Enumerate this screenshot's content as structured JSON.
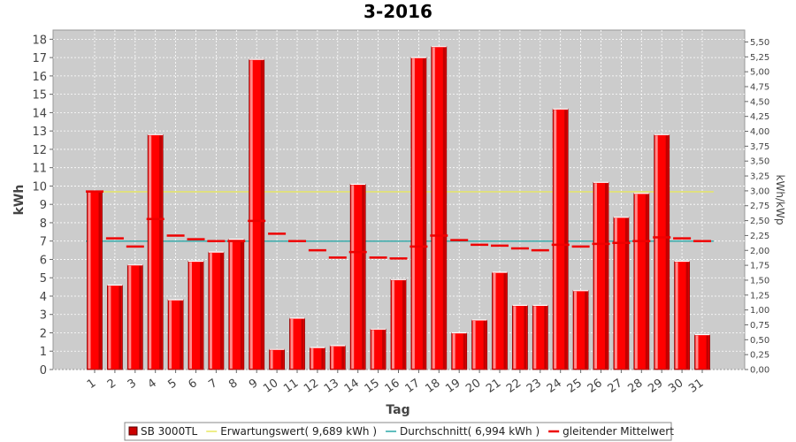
{
  "chart_data": {
    "type": "bar",
    "title": "3-2016",
    "xlabel": "Tag",
    "ylabel": "kWh",
    "y2label": "kWh/kWp",
    "ylim": [
      0,
      18.5
    ],
    "y2lim": [
      0,
      5.7
    ],
    "y2ticks": [
      "0,00",
      "0,25",
      "0,50",
      "0,75",
      "1,00",
      "1,25",
      "1,50",
      "1,75",
      "2,00",
      "2,25",
      "2,50",
      "2,75",
      "3,00",
      "3,25",
      "3,50",
      "3,75",
      "4,00",
      "4,25",
      "4,50",
      "4,75",
      "5,00",
      "5,25",
      "5,50"
    ],
    "grid": true,
    "legend_position": "bottom",
    "categories": [
      "1",
      "2",
      "3",
      "4",
      "5",
      "6",
      "7",
      "8",
      "9",
      "10",
      "11",
      "12",
      "13",
      "14",
      "15",
      "16",
      "17",
      "18",
      "19",
      "20",
      "21",
      "22",
      "23",
      "24",
      "25",
      "26",
      "27",
      "28",
      "29",
      "30",
      "31"
    ],
    "series": [
      {
        "name": "SB 3000TL",
        "type": "bar",
        "color": "#ee0000",
        "values": [
          9.7,
          4.6,
          5.7,
          12.8,
          3.8,
          5.9,
          6.4,
          7.1,
          16.9,
          1.1,
          2.8,
          1.2,
          1.3,
          10.1,
          2.2,
          4.9,
          17.0,
          17.6,
          2.0,
          2.7,
          5.3,
          3.5,
          3.5,
          14.2,
          4.3,
          10.2,
          8.3,
          9.6,
          12.8,
          5.9,
          1.9
        ]
      },
      {
        "name": "Erwartungswert( 9,689 kWh )",
        "type": "line",
        "color": "#e8e860",
        "value": 9.689
      },
      {
        "name": "Durchschnitt( 6,994 kWh )",
        "type": "line",
        "color": "#2aa8a8",
        "value": 6.994
      },
      {
        "name": "gleitender Mittelwert",
        "type": "marker",
        "color": "#ee0000",
        "values": [
          9.7,
          7.15,
          6.7,
          8.2,
          7.3,
          7.1,
          7.0,
          7.0,
          8.1,
          7.4,
          7.0,
          6.5,
          6.1,
          6.4,
          6.1,
          6.05,
          6.7,
          7.3,
          7.05,
          6.8,
          6.75,
          6.6,
          6.5,
          6.8,
          6.7,
          6.85,
          6.9,
          7.0,
          7.2,
          7.15,
          7.0
        ]
      }
    ]
  }
}
